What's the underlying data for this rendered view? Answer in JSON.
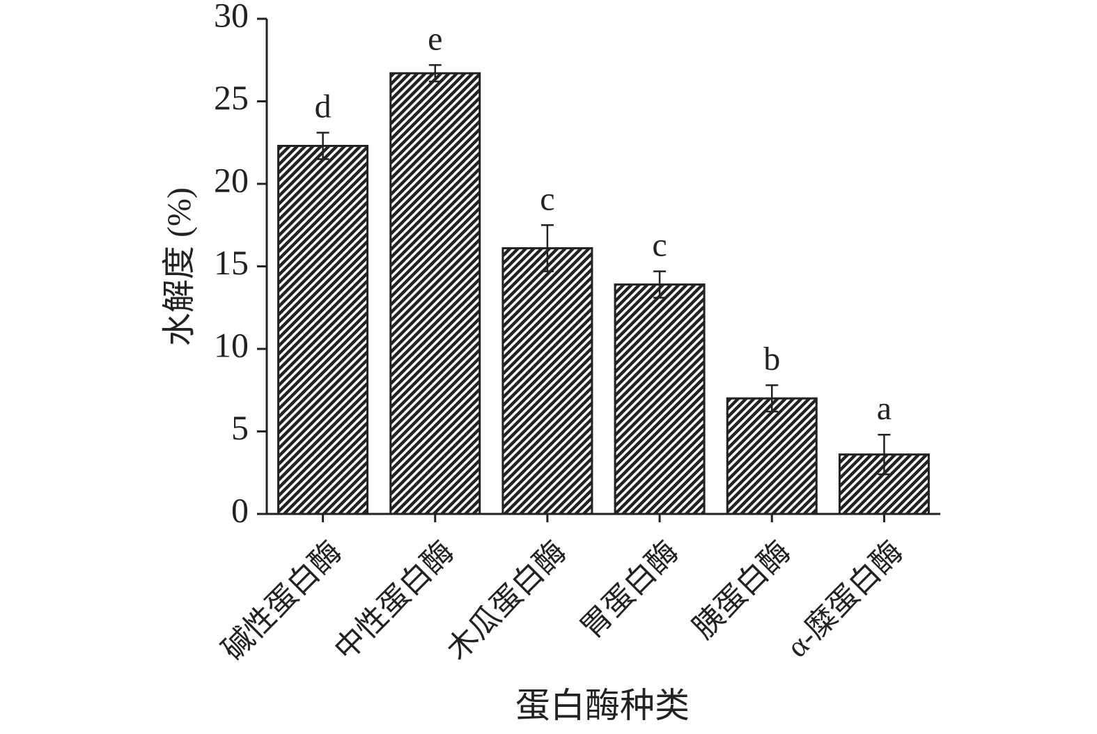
{
  "chart_data": {
    "type": "bar",
    "x_label": "蛋白酶种类",
    "y_label": "水解度 (%)",
    "categories": [
      "碱性蛋白酶",
      "中性蛋白酶",
      "木瓜蛋白酶",
      "胃蛋白酶",
      "胰蛋白酶",
      "α-糜蛋白酶"
    ],
    "values": [
      22.3,
      26.7,
      16.1,
      13.9,
      7.0,
      3.6
    ],
    "errors": [
      0.8,
      0.5,
      1.4,
      0.8,
      0.8,
      1.2
    ],
    "significance_labels": [
      "d",
      "e",
      "c",
      "c",
      "b",
      "a"
    ],
    "color": "#222222",
    "ylim": [
      0,
      30
    ],
    "yticks": [
      0,
      5,
      10,
      15,
      20,
      25,
      30
    ],
    "grid": false
  }
}
